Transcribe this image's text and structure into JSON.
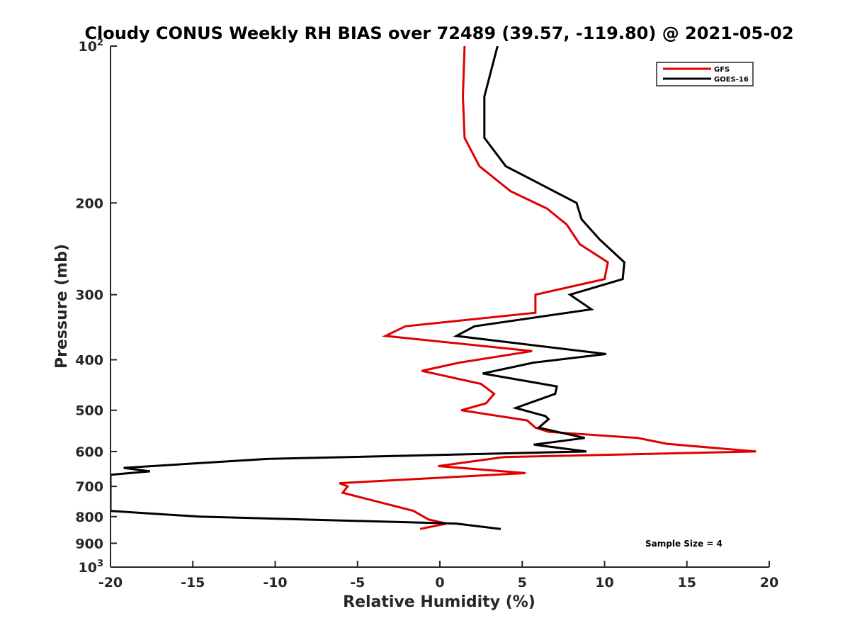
{
  "chart_data": {
    "type": "line",
    "title": "Cloudy CONUS Weekly RH BIAS over 72489 (39.57, -119.80) @ 2021-05-02",
    "xlabel": "Relative Humidity (%)",
    "ylabel": "Pressure (mb)",
    "xlim": [
      -20,
      20
    ],
    "ylim": [
      100,
      1000
    ],
    "yscale": "log",
    "y_reversed": true,
    "grid": false,
    "legend_position": "top-right",
    "x_ticks": [
      "-20",
      "-15",
      "-10",
      "-5",
      "0",
      "5",
      "10",
      "15",
      "20"
    ],
    "y_ticks": [
      {
        "value": 100,
        "label": "10",
        "sup": "2"
      },
      {
        "value": 200,
        "label": "200",
        "sup": ""
      },
      {
        "value": 300,
        "label": "300",
        "sup": ""
      },
      {
        "value": 400,
        "label": "400",
        "sup": ""
      },
      {
        "value": 500,
        "label": "500",
        "sup": ""
      },
      {
        "value": 600,
        "label": "600",
        "sup": ""
      },
      {
        "value": 700,
        "label": "700",
        "sup": ""
      },
      {
        "value": 800,
        "label": "800",
        "sup": ""
      },
      {
        "value": 900,
        "label": "900",
        "sup": ""
      },
      {
        "value": 1000,
        "label": "10",
        "sup": "3"
      }
    ],
    "annotation": "Sample Size = 4",
    "series": [
      {
        "name": "GFS",
        "color": "#e00000",
        "points": [
          [
            1.5,
            100
          ],
          [
            1.4,
            125
          ],
          [
            1.5,
            150
          ],
          [
            2.4,
            170
          ],
          [
            4.3,
            190
          ],
          [
            6.5,
            205
          ],
          [
            7.7,
            220
          ],
          [
            8.5,
            240
          ],
          [
            10.2,
            260
          ],
          [
            10.0,
            280
          ],
          [
            5.8,
            300
          ],
          [
            5.8,
            325
          ],
          [
            -2.1,
            345
          ],
          [
            -3.3,
            360
          ],
          [
            5.6,
            385
          ],
          [
            1.2,
            405
          ],
          [
            -1.1,
            420
          ],
          [
            2.5,
            445
          ],
          [
            3.3,
            465
          ],
          [
            2.8,
            485
          ],
          [
            1.3,
            500
          ],
          [
            5.3,
            523
          ],
          [
            5.8,
            540
          ],
          [
            6.6,
            550
          ],
          [
            12.0,
            565
          ],
          [
            13.8,
            580
          ],
          [
            19.2,
            600
          ],
          [
            3.9,
            615
          ],
          [
            -0.1,
            640
          ],
          [
            5.2,
            660
          ],
          [
            -6.1,
            690
          ],
          [
            -5.6,
            700
          ],
          [
            -5.9,
            720
          ],
          [
            -1.6,
            780
          ],
          [
            -0.7,
            810
          ],
          [
            0.4,
            825
          ],
          [
            -1.2,
            845
          ]
        ]
      },
      {
        "name": "GOES-16",
        "color": "#000000",
        "points": [
          [
            3.5,
            100
          ],
          [
            2.7,
            125
          ],
          [
            2.7,
            150
          ],
          [
            4.0,
            170
          ],
          [
            8.3,
            200
          ],
          [
            8.6,
            215
          ],
          [
            9.7,
            235
          ],
          [
            11.2,
            260
          ],
          [
            11.1,
            280
          ],
          [
            7.9,
            300
          ],
          [
            9.2,
            320
          ],
          [
            2.1,
            345
          ],
          [
            1.0,
            360
          ],
          [
            10.1,
            390
          ],
          [
            5.7,
            405
          ],
          [
            2.6,
            425
          ],
          [
            7.1,
            450
          ],
          [
            7.0,
            465
          ],
          [
            4.6,
            495
          ],
          [
            6.4,
            513
          ],
          [
            6.6,
            520
          ],
          [
            6.0,
            540
          ],
          [
            8.8,
            565
          ],
          [
            5.7,
            582
          ],
          [
            8.9,
            600
          ],
          [
            -10.5,
            620
          ],
          [
            -19.2,
            645
          ],
          [
            -17.6,
            655
          ],
          [
            -20.0,
            665
          ],
          [
            -20.0,
            780
          ],
          [
            -14.6,
            800
          ],
          [
            1.0,
            825
          ],
          [
            3.7,
            845
          ]
        ]
      }
    ]
  }
}
